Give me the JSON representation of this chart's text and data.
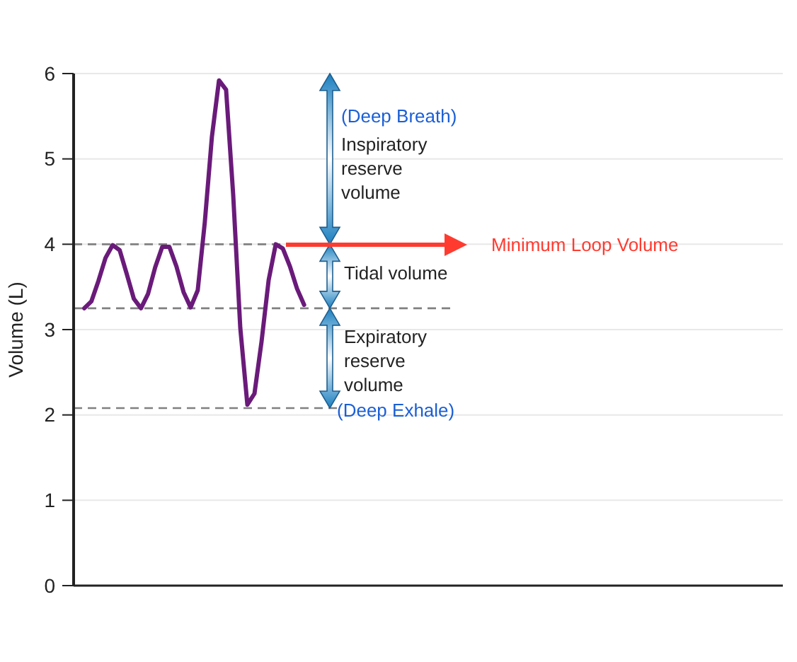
{
  "chart_data": {
    "type": "line",
    "ylabel": "Volume (L)",
    "categories": [
      null,
      null,
      null,
      null,
      null,
      null,
      null,
      null,
      null,
      null,
      null,
      null,
      null,
      null,
      null,
      null,
      null,
      null,
      null,
      null,
      null,
      null,
      null,
      null,
      null,
      null,
      null,
      null,
      null,
      null,
      null,
      null,
      null,
      null,
      null,
      null,
      null,
      null,
      null,
      null,
      null,
      null,
      null,
      null,
      null,
      null,
      null,
      null,
      null,
      null,
      null,
      null,
      null,
      null,
      null,
      null,
      null,
      null,
      null,
      null,
      null,
      null,
      null,
      null,
      null,
      null,
      null,
      null,
      null,
      null,
      null,
      null,
      null,
      null,
      null,
      null,
      null,
      null,
      null,
      null,
      null,
      null,
      null,
      null,
      null,
      null,
      null,
      null,
      null,
      null,
      null,
      null,
      null,
      null,
      null,
      null,
      null,
      null,
      null,
      null
    ],
    "ylim": [
      0,
      6
    ],
    "yticks": [
      0,
      1,
      2,
      3,
      4,
      5,
      6
    ],
    "grid": "y",
    "marker": "none",
    "line_style": "solid",
    "series": [
      {
        "color": "#6a1b7a",
        "values": [
          null,
          3.25,
          3.33,
          3.57,
          3.84,
          3.99,
          3.93,
          3.65,
          3.36,
          3.25,
          3.42,
          3.73,
          3.97,
          3.97,
          3.74,
          3.44,
          3.26,
          3.46,
          4.26,
          5.26,
          5.92,
          5.81,
          4.58,
          3.02,
          2.12,
          2.25,
          2.86,
          3.58,
          4.0,
          3.95,
          3.74,
          3.48,
          3.29,
          null,
          null,
          null,
          null,
          null,
          null,
          null,
          null,
          null,
          null,
          null,
          null,
          null,
          null,
          null,
          null,
          null,
          null,
          null,
          null,
          null,
          null,
          null,
          null,
          null,
          null,
          null,
          null,
          null,
          null,
          null,
          null,
          null,
          null,
          null,
          null,
          null,
          null,
          null,
          null,
          null,
          null,
          null,
          null,
          null,
          null,
          null,
          null,
          null,
          null,
          null,
          null,
          null,
          null,
          null,
          null,
          null,
          null,
          null,
          null,
          null,
          null,
          null,
          null,
          null,
          null,
          null
        ]
      }
    ],
    "ref_lines": [
      {
        "axis": "y",
        "value": 4,
        "color": "#808080",
        "line_style": "dashed"
      },
      {
        "axis": "y",
        "value": 3.25,
        "color": "#808080",
        "line_style": "dashed"
      },
      {
        "axis": "y",
        "value": 2.08,
        "color": "#808080",
        "line_style": "dashed"
      }
    ],
    "annotations": [
      "(Deep Breath)",
      "Inspiratory reserve volume",
      "Tidal volume",
      "Expiratory reserve volume",
      "(Deep Exhale)",
      "Minimum Loop Volume"
    ]
  }
}
